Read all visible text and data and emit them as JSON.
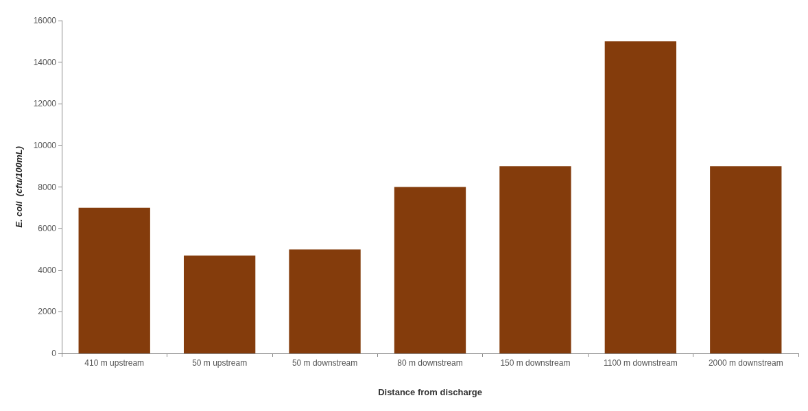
{
  "chart_data": {
    "type": "bar",
    "xlabel": "Distance from discharge",
    "ylabel": "E. coli  (cfu/100mL)",
    "categories": [
      "410 m upstream",
      "50 m upstream",
      "50 m downstream",
      "80 m downstream",
      "150 m downstream",
      "1100 m downstream",
      "2000 m downstream"
    ],
    "values": [
      7000,
      4700,
      5000,
      8000,
      9000,
      15000,
      9000
    ],
    "color": "#843c0c",
    "ylim": [
      0,
      16000
    ],
    "yticks": [
      0,
      2000,
      4000,
      6000,
      8000,
      10000,
      12000,
      14000,
      16000
    ],
    "grid": false
  }
}
